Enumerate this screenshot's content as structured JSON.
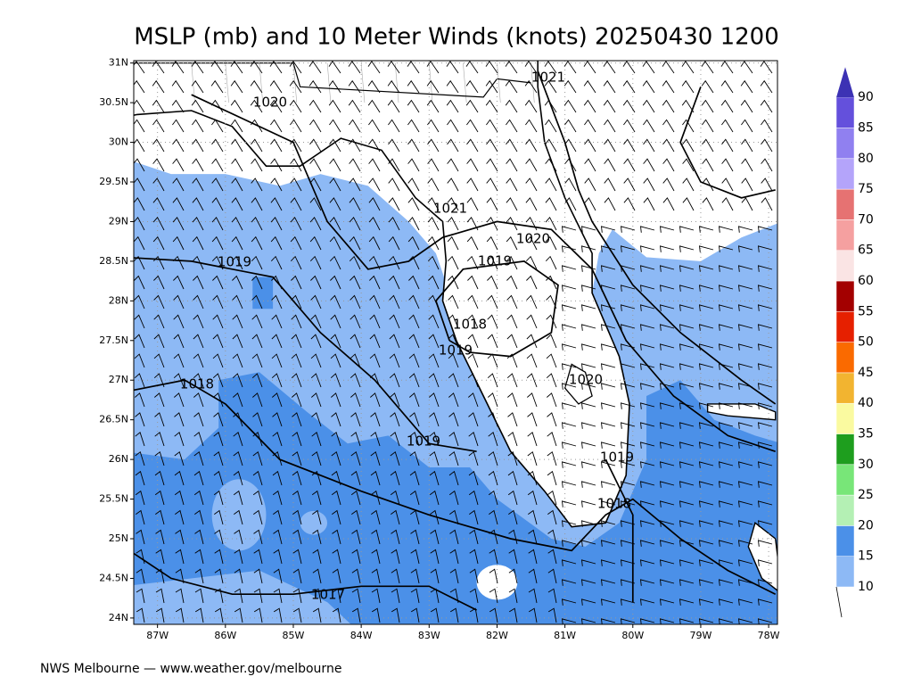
{
  "chart_data": {
    "type": "map",
    "title": "MSLP (mb) and 10 Meter Winds (knots) 20250430 1200",
    "footer": "NWS Melbourne — www.weather.gov/melbourne",
    "xlim": [
      -87.35,
      -77.87
    ],
    "ylim": [
      23.92,
      31.03
    ],
    "xticks": [
      {
        "value": -87,
        "label": "87W"
      },
      {
        "value": -86,
        "label": "86W"
      },
      {
        "value": -85,
        "label": "85W"
      },
      {
        "value": -84,
        "label": "84W"
      },
      {
        "value": -83,
        "label": "83W"
      },
      {
        "value": -82,
        "label": "82W"
      },
      {
        "value": -81,
        "label": "81W"
      },
      {
        "value": -80,
        "label": "80W"
      },
      {
        "value": -79,
        "label": "79W"
      },
      {
        "value": -78,
        "label": "78W"
      }
    ],
    "yticks": [
      {
        "value": 31,
        "label": "31N"
      },
      {
        "value": 30.5,
        "label": "30.5N"
      },
      {
        "value": 30,
        "label": "30N"
      },
      {
        "value": 29.5,
        "label": "29.5N"
      },
      {
        "value": 29,
        "label": "29N"
      },
      {
        "value": 28.5,
        "label": "28.5N"
      },
      {
        "value": 28,
        "label": "28N"
      },
      {
        "value": 27.5,
        "label": "27.5N"
      },
      {
        "value": 27,
        "label": "27N"
      },
      {
        "value": 26.5,
        "label": "26.5N"
      },
      {
        "value": 26,
        "label": "26N"
      },
      {
        "value": 25.5,
        "label": "25.5N"
      },
      {
        "value": 25,
        "label": "25N"
      },
      {
        "value": 24.5,
        "label": "24.5N"
      },
      {
        "value": 24,
        "label": "24N"
      }
    ],
    "contour_labels": [
      "1020",
      "1021",
      "1021",
      "1020",
      "1019",
      "1019",
      "1018",
      "1019",
      "1020",
      "1018",
      "1019",
      "1019",
      "1018",
      "1017"
    ],
    "colorbar": {
      "levels": [
        10,
        15,
        20,
        25,
        30,
        35,
        40,
        45,
        50,
        55,
        60,
        65,
        70,
        75,
        80,
        85,
        90
      ],
      "colors": [
        "#8db9f5",
        "#4b90e8",
        "#b4f0b4",
        "#78e678",
        "#1e9e1e",
        "#fafaa0",
        "#f2b430",
        "#fa6a00",
        "#e62000",
        "#a30000",
        "#fae4e4",
        "#f5a0a0",
        "#e67272",
        "#b4a4fa",
        "#9080f0",
        "#6450dc"
      ],
      "extend_color": "#3c32b4"
    }
  }
}
